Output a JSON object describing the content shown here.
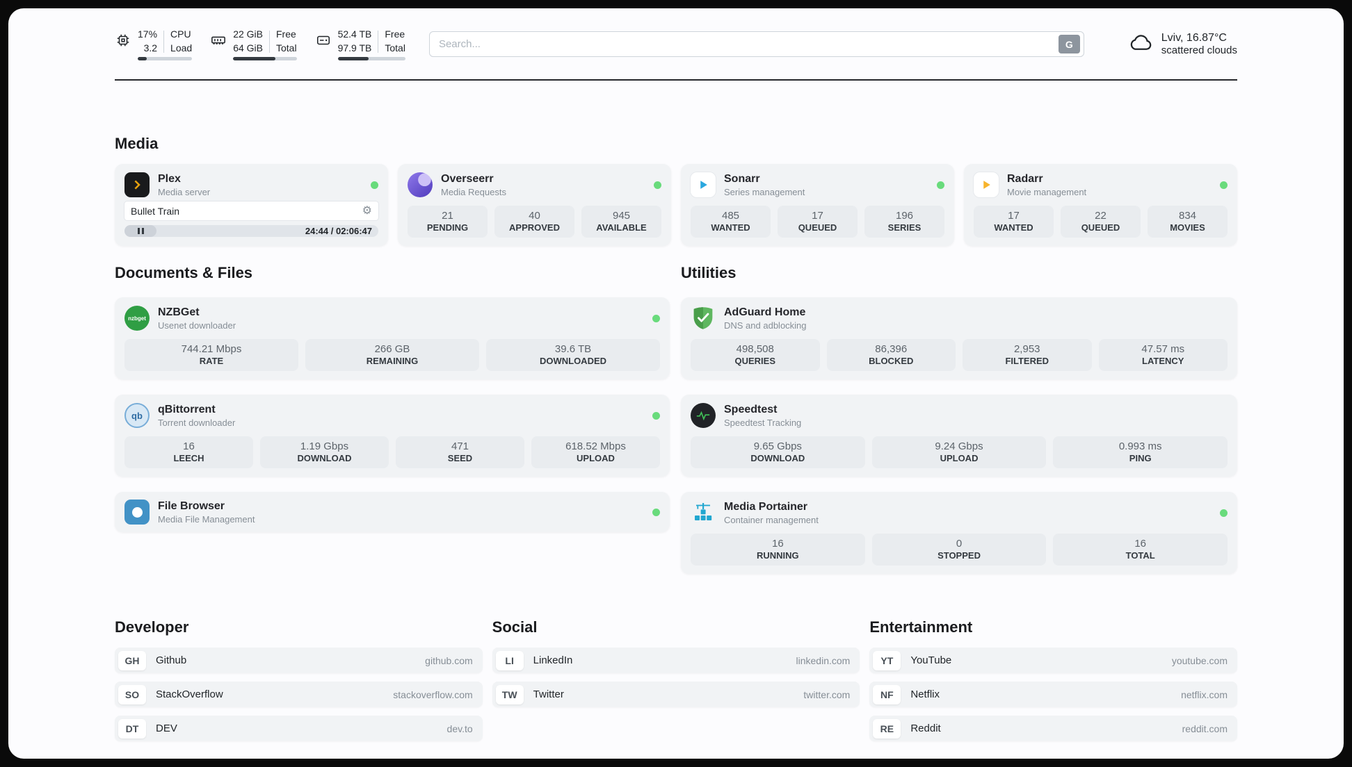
{
  "header": {
    "cpu": {
      "value1": "17%",
      "value2": "3.2",
      "label1": "CPU",
      "label2": "Load",
      "bar_percent": 17
    },
    "memory": {
      "value1": "22 GiB",
      "value2": "64 GiB",
      "label1": "Free",
      "label2": "Total",
      "bar_percent": 66
    },
    "disk": {
      "value1": "52.4 TB",
      "value2": "97.9 TB",
      "label1": "Free",
      "label2": "Total",
      "bar_percent": 46
    },
    "search": {
      "placeholder": "Search...",
      "engine_button": "G"
    },
    "weather": {
      "location": "Lviv, 16.87°C",
      "condition": "scattered clouds"
    }
  },
  "icons": {
    "gear": "⚙"
  },
  "sections": {
    "media": {
      "title": "Media",
      "plex": {
        "name": "Plex",
        "subtitle": "Media server",
        "now_playing": "Bullet Train",
        "time": "24:44 / 02:06:47"
      },
      "overseerr": {
        "name": "Overseerr",
        "subtitle": "Media Requests",
        "stats": [
          {
            "value": "21",
            "label": "PENDING"
          },
          {
            "value": "40",
            "label": "APPROVED"
          },
          {
            "value": "945",
            "label": "AVAILABLE"
          }
        ]
      },
      "sonarr": {
        "name": "Sonarr",
        "subtitle": "Series management",
        "stats": [
          {
            "value": "485",
            "label": "WANTED"
          },
          {
            "value": "17",
            "label": "QUEUED"
          },
          {
            "value": "196",
            "label": "SERIES"
          }
        ]
      },
      "radarr": {
        "name": "Radarr",
        "subtitle": "Movie management",
        "stats": [
          {
            "value": "17",
            "label": "WANTED"
          },
          {
            "value": "22",
            "label": "QUEUED"
          },
          {
            "value": "834",
            "label": "MOVIES"
          }
        ]
      }
    },
    "documents": {
      "title": "Documents & Files",
      "nzbget": {
        "name": "NZBGet",
        "subtitle": "Usenet downloader",
        "icon_text": "nzbget",
        "stats": [
          {
            "value": "744.21 Mbps",
            "label": "RATE"
          },
          {
            "value": "266 GB",
            "label": "REMAINING"
          },
          {
            "value": "39.6 TB",
            "label": "DOWNLOADED"
          }
        ]
      },
      "qbittorrent": {
        "name": "qBittorrent",
        "subtitle": "Torrent downloader",
        "icon_text": "qb",
        "stats": [
          {
            "value": "16",
            "label": "LEECH"
          },
          {
            "value": "1.19 Gbps",
            "label": "DOWNLOAD"
          },
          {
            "value": "471",
            "label": "SEED"
          },
          {
            "value": "618.52 Mbps",
            "label": "UPLOAD"
          }
        ]
      },
      "filebrowser": {
        "name": "File Browser",
        "subtitle": "Media File Management"
      }
    },
    "utilities": {
      "title": "Utilities",
      "adguard": {
        "name": "AdGuard Home",
        "subtitle": "DNS and adblocking",
        "stats": [
          {
            "value": "498,508",
            "label": "QUERIES"
          },
          {
            "value": "86,396",
            "label": "BLOCKED"
          },
          {
            "value": "2,953",
            "label": "FILTERED"
          },
          {
            "value": "47.57 ms",
            "label": "LATENCY"
          }
        ]
      },
      "speedtest": {
        "name": "Speedtest",
        "subtitle": "Speedtest Tracking",
        "stats": [
          {
            "value": "9.65 Gbps",
            "label": "DOWNLOAD"
          },
          {
            "value": "9.24 Gbps",
            "label": "UPLOAD"
          },
          {
            "value": "0.993 ms",
            "label": "PING"
          }
        ]
      },
      "portainer": {
        "name": "Media Portainer",
        "subtitle": "Container management",
        "stats": [
          {
            "value": "16",
            "label": "RUNNING"
          },
          {
            "value": "0",
            "label": "STOPPED"
          },
          {
            "value": "16",
            "label": "TOTAL"
          }
        ]
      }
    },
    "developer": {
      "title": "Developer",
      "links": [
        {
          "badge": "GH",
          "name": "Github",
          "domain": "github.com"
        },
        {
          "badge": "SO",
          "name": "StackOverflow",
          "domain": "stackoverflow.com"
        },
        {
          "badge": "DT",
          "name": "DEV",
          "domain": "dev.to"
        }
      ]
    },
    "social": {
      "title": "Social",
      "links": [
        {
          "badge": "LI",
          "name": "LinkedIn",
          "domain": "linkedin.com"
        },
        {
          "badge": "TW",
          "name": "Twitter",
          "domain": "twitter.com"
        }
      ]
    },
    "entertainment": {
      "title": "Entertainment",
      "links": [
        {
          "badge": "YT",
          "name": "YouTube",
          "domain": "youtube.com"
        },
        {
          "badge": "NF",
          "name": "Netflix",
          "domain": "netflix.com"
        },
        {
          "badge": "RE",
          "name": "Reddit",
          "domain": "reddit.com"
        }
      ]
    }
  },
  "colors": {
    "status_online": "#69db7c",
    "plex_accent": "#e5a00d",
    "sonarr_accent": "#2aa7df",
    "radarr_accent": "#f7b42c",
    "nzbget_accent": "#2f9e44",
    "qbittorrent_accent": "#2f6ca3",
    "adguard_accent": "#5fb760",
    "speedtest_accent": "#40c057",
    "portainer_accent": "#22a7d0",
    "filebrowser_accent": "#4292c6"
  }
}
